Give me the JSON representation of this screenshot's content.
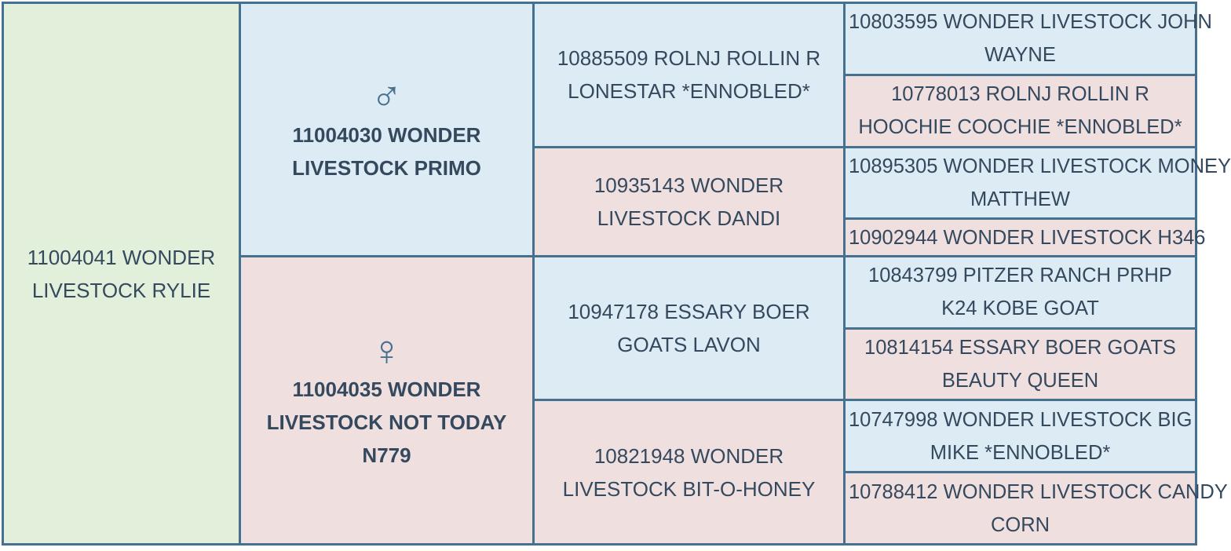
{
  "subject": "11004041 WONDER LIVESTOCK RYLIE",
  "sire": {
    "name": "11004030 WONDER LIVESTOCK PRIMO",
    "icon": "male-symbol-icon",
    "symbol": "♂"
  },
  "dam": {
    "name": "11004035 WONDER LIVESTOCK NOT TODAY N779",
    "icon": "female-symbol-icon",
    "symbol": "♀"
  },
  "grandparents": [
    "10885509 ROLNJ ROLLIN R LONESTAR *ENNOBLED*",
    "10935143 WONDER LIVESTOCK DANDI",
    "10947178 ESSARY BOER GOATS LAVON",
    "10821948 WONDER LIVESTOCK BIT-O-HONEY"
  ],
  "great_grandparents": [
    "10803595 WONDER LIVESTOCK JOHN WAYNE",
    "10778013 ROLNJ ROLLIN R HOOCHIE COOCHIE *ENNOBLED*",
    "10895305 WONDER LIVESTOCK MONEY MATTHEW",
    "10902944 WONDER LIVESTOCK H346",
    "10843799 PITZER RANCH PRHP K24 KOBE GOAT",
    "10814154 ESSARY BOER GOATS BEAUTY QUEEN",
    "10747998 WONDER LIVESTOCK BIG MIKE *ENNOBLED*",
    "10788412 WONDER LIVESTOCK CANDY CORN"
  ],
  "colors": {
    "subject": "#e2efda",
    "male": "#ddebf4",
    "female": "#f0dfdf",
    "border": "#46708f",
    "text": "#34495e"
  }
}
